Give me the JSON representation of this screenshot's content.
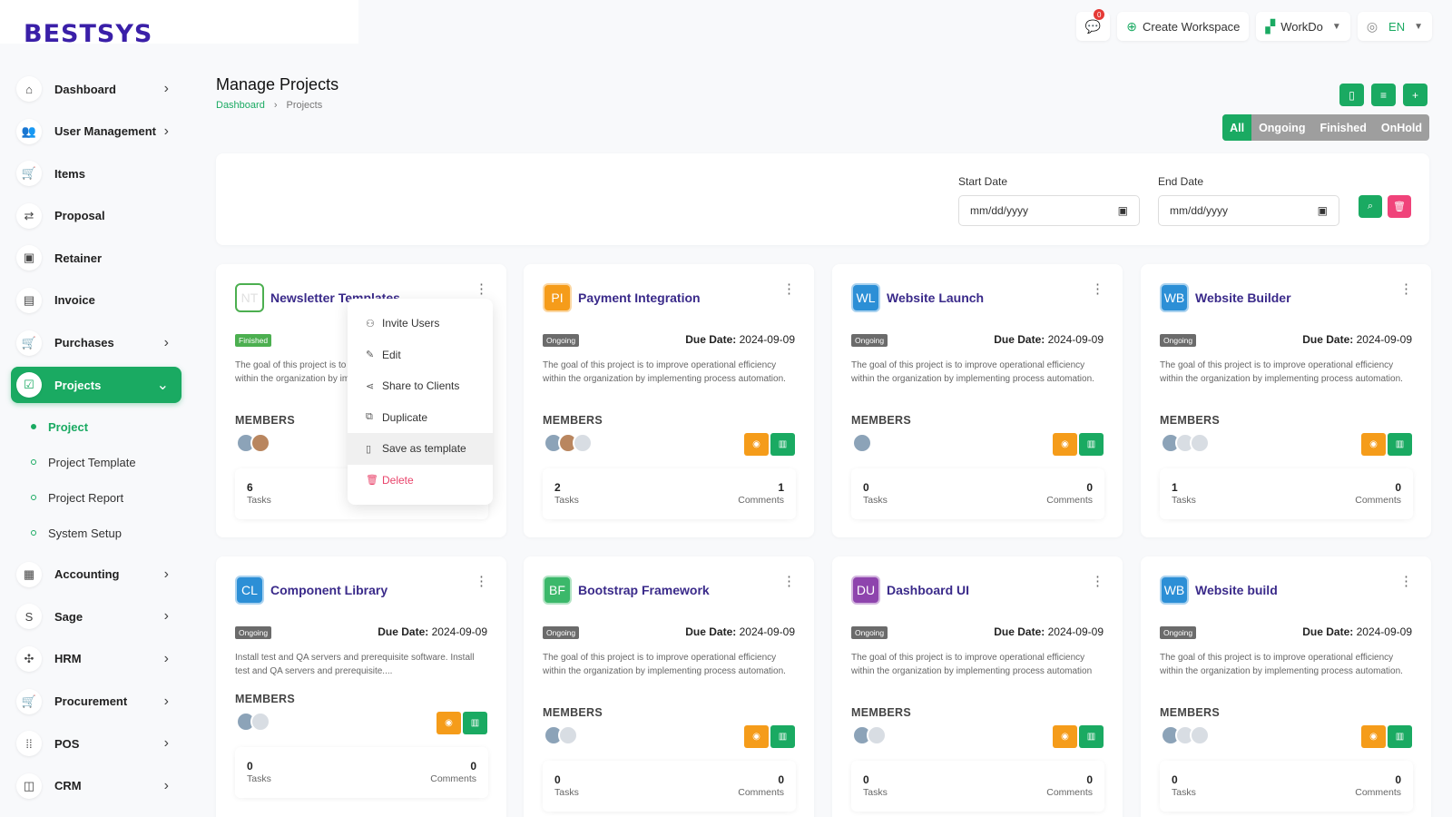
{
  "brand": "BESTSYS",
  "topbar": {
    "notification_count": "0",
    "create_workspace": "Create Workspace",
    "workspace": "WorkDo",
    "language": "EN"
  },
  "sidebar": {
    "items": [
      {
        "label": "Dashboard",
        "icon": "home-icon",
        "has_children": true
      },
      {
        "label": "User Management",
        "icon": "users-icon",
        "has_children": true
      },
      {
        "label": "Items",
        "icon": "cart-icon",
        "has_children": false
      },
      {
        "label": "Proposal",
        "icon": "proposal-icon",
        "has_children": false
      },
      {
        "label": "Retainer",
        "icon": "retainer-icon",
        "has_children": false
      },
      {
        "label": "Invoice",
        "icon": "invoice-icon",
        "has_children": false
      },
      {
        "label": "Purchases",
        "icon": "cart-icon",
        "has_children": true
      },
      {
        "label": "Projects",
        "icon": "check-square-icon",
        "has_children": true,
        "active": true
      },
      {
        "label": "Accounting",
        "icon": "grid-icon",
        "has_children": true
      },
      {
        "label": "Sage",
        "icon": "sage-icon",
        "has_children": true
      },
      {
        "label": "HRM",
        "icon": "hrm-icon",
        "has_children": true
      },
      {
        "label": "Procurement",
        "icon": "procurement-icon",
        "has_children": true
      },
      {
        "label": "POS",
        "icon": "pos-grid-icon",
        "has_children": true
      },
      {
        "label": "CRM",
        "icon": "crm-icon",
        "has_children": true
      }
    ],
    "projects_sub": [
      "Project",
      "Project Template",
      "Project Report",
      "System Setup"
    ]
  },
  "header": {
    "title": "Manage Projects",
    "breadcrumb": [
      "Dashboard",
      "Projects"
    ]
  },
  "filter_tabs": [
    "All",
    "Ongoing",
    "Finished",
    "OnHold"
  ],
  "filters": {
    "start_label": "Start Date",
    "end_label": "End Date",
    "placeholder": "mm/dd/yyyy"
  },
  "labels": {
    "members": "MEMBERS",
    "tasks": "Tasks",
    "comments": "Comments",
    "due_prefix": "Due Date:"
  },
  "projects": [
    {
      "initials": "NT",
      "name": "Newsletter Templates",
      "status": "Finished",
      "due": "",
      "desc": "The goal of this project is to improve operational efficiency within the organization by implementing process automation.",
      "tasks": "6",
      "comments": "",
      "color": "#4caf50"
    },
    {
      "initials": "PI",
      "name": "Payment Integration",
      "status": "Ongoing",
      "due": "2024-09-09",
      "desc": "The goal of this project is to improve operational efficiency within the organization by implementing process automation.",
      "tasks": "2",
      "comments": "1",
      "color": "#f59c1a"
    },
    {
      "initials": "WL",
      "name": "Website Launch",
      "status": "Ongoing",
      "due": "2024-09-09",
      "desc": "The goal of this project is to improve operational efficiency within the organization by implementing process automation.",
      "tasks": "0",
      "comments": "0",
      "color": "#2c8fd6"
    },
    {
      "initials": "WB",
      "name": "Website Builder",
      "status": "Ongoing",
      "due": "2024-09-09",
      "desc": "The goal of this project is to improve operational efficiency within the organization by implementing process automation.",
      "tasks": "1",
      "comments": "0",
      "color": "#2c8fd6"
    },
    {
      "initials": "CL",
      "name": "Component Library",
      "status": "Ongoing",
      "due": "2024-09-09",
      "desc": "Install test and QA servers and prerequisite software. Install test and QA servers and prerequisite....",
      "tasks": "0",
      "comments": "0",
      "color": "#2c8fd6"
    },
    {
      "initials": "BF",
      "name": "Bootstrap Framework",
      "status": "Ongoing",
      "due": "2024-09-09",
      "desc": "The goal of this project is to improve operational efficiency within the organization by implementing process automation.",
      "tasks": "0",
      "comments": "0",
      "color": "#3bb86a"
    },
    {
      "initials": "DU",
      "name": "Dashboard UI",
      "status": "Ongoing",
      "due": "2024-09-09",
      "desc": "The goal of this project is to improve operational efficiency within the organization by implementing process automation",
      "tasks": "0",
      "comments": "0",
      "color": "#8e44ad"
    },
    {
      "initials": "WB",
      "name": "Website build",
      "status": "Ongoing",
      "due": "2024-09-09",
      "desc": "The goal of this project is to improve operational efficiency within the organization by implementing process automation.",
      "tasks": "0",
      "comments": "0",
      "color": "#2c8fd6"
    }
  ],
  "dropdown": [
    "Invite Users",
    "Edit",
    "Share to Clients",
    "Duplicate",
    "Save as template",
    "Delete"
  ]
}
